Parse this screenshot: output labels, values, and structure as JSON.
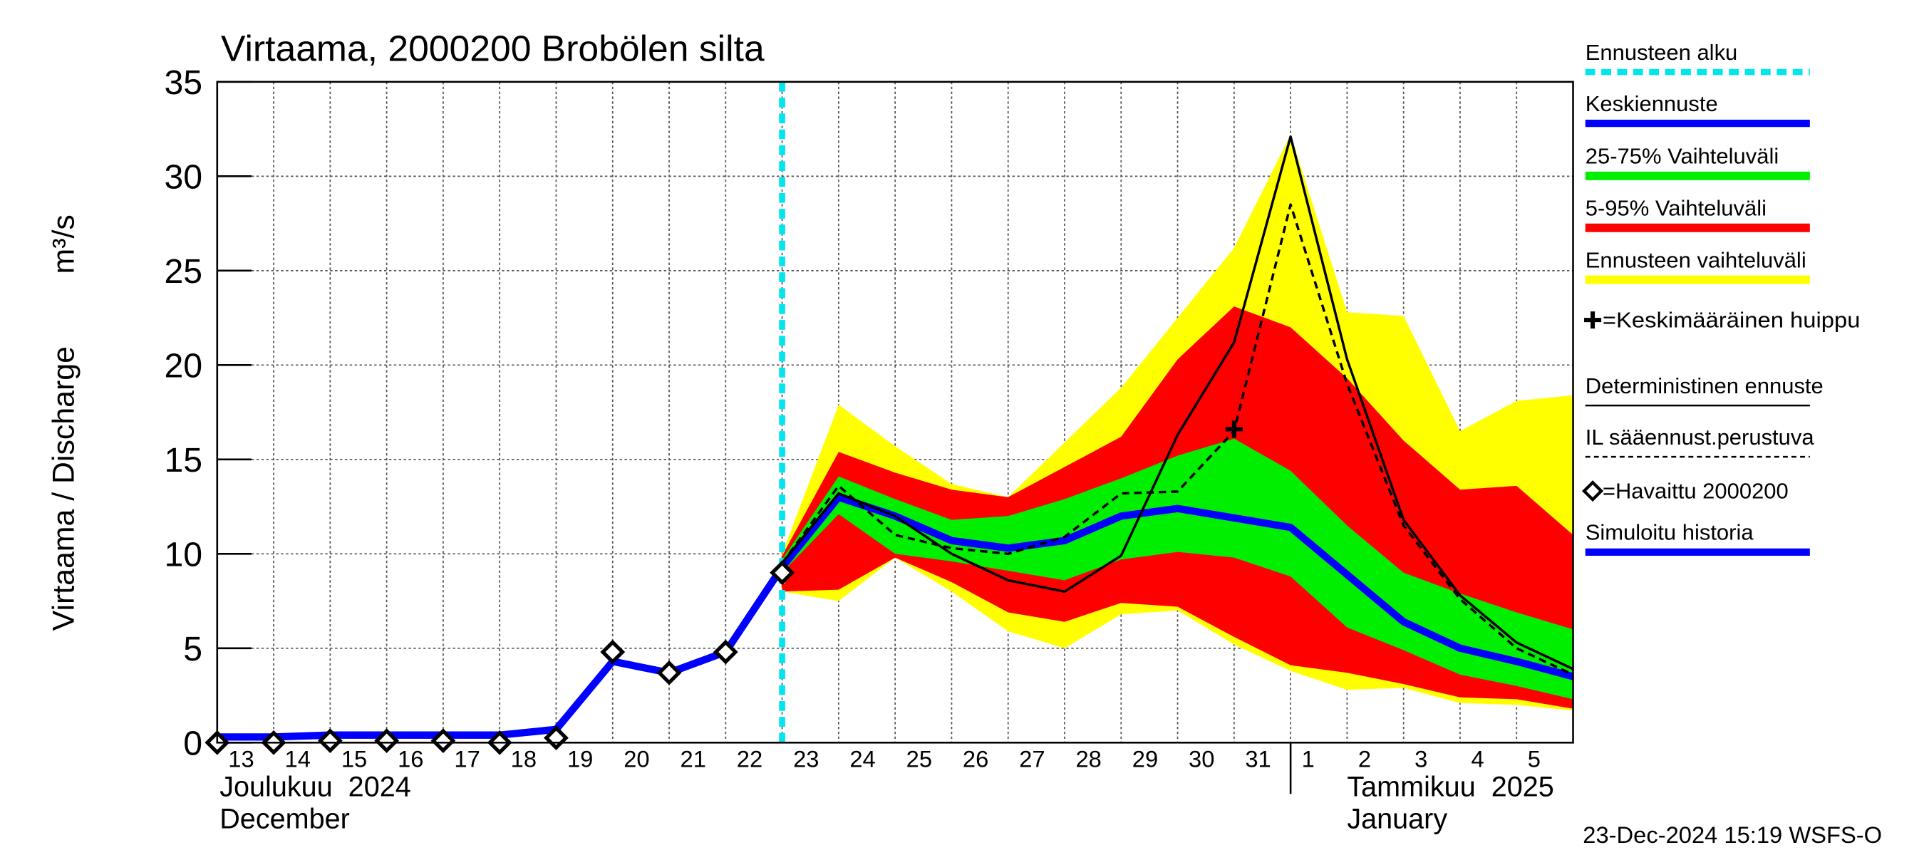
{
  "chart_data": {
    "type": "line",
    "title": "Virtaama, 2000200 Brobölen silta",
    "ylabel": "Virtaama / Discharge",
    "yunit": "m³/s",
    "categories": [
      "13",
      "14",
      "15",
      "16",
      "17",
      "18",
      "19",
      "20",
      "21",
      "22",
      "23",
      "24",
      "25",
      "26",
      "27",
      "28",
      "29",
      "30",
      "31",
      "1",
      "2",
      "3",
      "4",
      "5",
      null
    ],
    "months": [
      {
        "label": "Joulukuu  2024",
        "label_en": "December",
        "start": "13"
      },
      {
        "label": "Tammikuu  2025",
        "label_en": "January",
        "start": "1"
      }
    ],
    "ylim": [
      0,
      35
    ],
    "yticks": [
      0,
      5,
      10,
      15,
      20,
      25,
      30,
      35
    ],
    "grid": true,
    "forecast_start": {
      "name": "Ennusteen alku",
      "x": "23",
      "color": "#00e5ee"
    },
    "bands": [
      {
        "name": "Ennusteen vaihteluväli",
        "color": "#ffff00",
        "low": [
          null,
          null,
          null,
          null,
          null,
          null,
          null,
          null,
          null,
          null,
          8.0,
          7.5,
          9.8,
          8.0,
          5.9,
          5.0,
          6.8,
          7.0,
          5.2,
          3.8,
          2.8,
          2.9,
          2.1,
          2.0,
          1.7
        ],
        "high": [
          null,
          null,
          null,
          null,
          null,
          null,
          null,
          null,
          null,
          null,
          10.0,
          17.9,
          15.7,
          13.7,
          13.0,
          15.9,
          18.8,
          22.5,
          26.2,
          32.2,
          22.8,
          22.6,
          16.5,
          18.1,
          18.4
        ]
      },
      {
        "name": "5-95% Vaihteluväli",
        "color": "#ff0000",
        "low": [
          null,
          null,
          null,
          null,
          null,
          null,
          null,
          null,
          null,
          null,
          8.0,
          8.1,
          9.8,
          8.5,
          6.9,
          6.4,
          7.4,
          7.2,
          5.6,
          4.1,
          3.7,
          3.1,
          2.4,
          2.3,
          1.8
        ],
        "high": [
          null,
          null,
          null,
          null,
          null,
          null,
          null,
          null,
          null,
          null,
          9.9,
          15.4,
          14.3,
          13.4,
          13.0,
          14.6,
          16.2,
          20.3,
          23.1,
          22.0,
          19.3,
          16.0,
          13.4,
          13.6,
          11.0
        ]
      },
      {
        "name": "25-75% Vaihteluväli",
        "color": "#00ee00",
        "low": [
          null,
          null,
          null,
          null,
          null,
          null,
          null,
          null,
          null,
          null,
          9.0,
          12.1,
          10.0,
          9.6,
          9.1,
          8.6,
          9.7,
          10.1,
          9.8,
          8.8,
          6.1,
          4.9,
          3.6,
          3.0,
          2.3
        ],
        "high": [
          null,
          null,
          null,
          null,
          null,
          null,
          null,
          null,
          null,
          null,
          9.7,
          14.1,
          12.9,
          11.8,
          12.0,
          12.9,
          14.0,
          15.2,
          16.1,
          14.4,
          11.5,
          9.0,
          7.9,
          6.9,
          6.0
        ]
      }
    ],
    "series": [
      {
        "name": "Keskiennuste",
        "color": "#0000ff",
        "style": "thick",
        "values": [
          null,
          null,
          null,
          null,
          null,
          null,
          null,
          null,
          null,
          null,
          9.3,
          13.0,
          12.0,
          10.7,
          10.3,
          10.7,
          12.0,
          12.4,
          11.9,
          11.4,
          8.9,
          6.4,
          5.0,
          4.3,
          3.5
        ]
      },
      {
        "name": "Deterministinen ennuste",
        "color": "#000000",
        "style": "solid",
        "values": [
          null,
          null,
          null,
          null,
          null,
          null,
          null,
          null,
          null,
          null,
          9.5,
          13.2,
          12.0,
          10.0,
          8.6,
          8.0,
          9.9,
          16.3,
          21.2,
          32.1,
          20.3,
          11.8,
          7.8,
          5.3,
          3.9
        ]
      },
      {
        "name": "IL sääennust.perustuva",
        "color": "#000000",
        "style": "dashed",
        "values": [
          null,
          null,
          null,
          null,
          null,
          null,
          null,
          null,
          null,
          null,
          9.5,
          13.6,
          11.0,
          10.3,
          10.0,
          10.9,
          13.2,
          13.3,
          16.5,
          28.5,
          19.0,
          11.5,
          7.6,
          5.0,
          3.6
        ]
      },
      {
        "name": "Simuloitu historia",
        "color": "#0000ff",
        "style": "thick",
        "values": [
          0.3,
          0.3,
          0.4,
          0.4,
          0.4,
          0.4,
          0.7,
          4.3,
          3.7,
          4.8,
          9.3,
          null,
          null,
          null,
          null,
          null,
          null,
          null,
          null,
          null,
          null,
          null,
          null,
          null,
          null
        ]
      },
      {
        "name": "=Havaittu 2000200",
        "color": "#000000",
        "style": "diamonds",
        "values": [
          0,
          0,
          0.1,
          0.1,
          0.1,
          0,
          0.25,
          4.8,
          3.7,
          4.8,
          9.0,
          null,
          null,
          null,
          null,
          null,
          null,
          null,
          null,
          null,
          null,
          null,
          null,
          null,
          null
        ]
      }
    ],
    "peak": {
      "name": "=Keskimääräinen huippu",
      "x": "31",
      "value": 16.6
    },
    "timestamp": "23-Dec-2024 15:19 WSFS-O"
  }
}
